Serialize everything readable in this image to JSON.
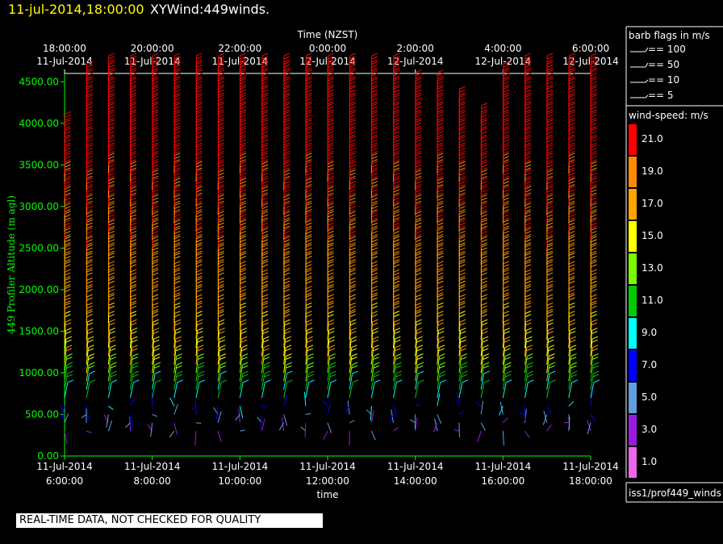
{
  "header": {
    "date_time": "11-jul-2014,18:00:00",
    "title": "XYWind:449winds."
  },
  "quality_note": "REAL-TIME DATA, NOT CHECKED FOR QUALITY",
  "barb_legend": {
    "title": "barb flags in m/s",
    "items": [
      "== 100",
      "== 50",
      "== 10",
      "== 5"
    ]
  },
  "speed_legend": {
    "title": "wind-speed: m/s",
    "levels": [
      {
        "label": "21.0",
        "color": "#ff0000"
      },
      {
        "label": "19.0",
        "color": "#ff8c00"
      },
      {
        "label": "17.0",
        "color": "#ffa500"
      },
      {
        "label": "15.0",
        "color": "#ffff00"
      },
      {
        "label": "13.0",
        "color": "#7cfc00"
      },
      {
        "label": "11.0",
        "color": "#00cc00"
      },
      {
        "label": "9.0",
        "color": "#00ffff"
      },
      {
        "label": "7.0",
        "color": "#0000ff"
      },
      {
        "label": "5.0",
        "color": "#5f9fdf"
      },
      {
        "label": "3.0",
        "color": "#9a1adf"
      },
      {
        "label": "1.0",
        "color": "#ee66ee"
      }
    ]
  },
  "source_label": "iss1/prof449_winds",
  "chart_data": {
    "type": "scatter",
    "mark": "wind-barb",
    "top_axis_title": "Time (NZST)",
    "top_ticks": [
      {
        "time": "18:00:00",
        "date": "11-Jul-2014"
      },
      {
        "time": "20:00:00",
        "date": "11-Jul-2014"
      },
      {
        "time": "22:00:00",
        "date": "11-Jul-2014"
      },
      {
        "time": "0:00:00",
        "date": "12-Jul-2014"
      },
      {
        "time": "2:00:00",
        "date": "12-Jul-2014"
      },
      {
        "time": "4:00:00",
        "date": "12-Jul-2014"
      },
      {
        "time": "6:00:00",
        "date": "12-Jul-2014"
      }
    ],
    "bottom_ticks": [
      {
        "date": "11-Jul-2014",
        "time": "6:00:00"
      },
      {
        "date": "11-Jul-2014",
        "time": "8:00:00"
      },
      {
        "date": "11-Jul-2014",
        "time": "10:00:00"
      },
      {
        "date": "11-Jul-2014",
        "time": "12:00:00"
      },
      {
        "date": "11-Jul-2014",
        "time": "14:00:00"
      },
      {
        "date": "11-Jul-2014",
        "time": "16:00:00"
      },
      {
        "date": "11-Jul-2014",
        "time": "18:00:00"
      }
    ],
    "xlabel": "time",
    "ylabel": "449 Profiler Altitude (m agl)",
    "x_hours_range": [
      6,
      18
    ],
    "yticks": [
      "0.00",
      "500.00",
      "1000.00",
      "1500.00",
      "2000.00",
      "2500.00",
      "3000.00",
      "3500.00",
      "4000.00",
      "4500.00"
    ],
    "ylim": [
      0,
      4600
    ],
    "profile_times_hours": [
      6.0,
      6.5,
      7.0,
      7.5,
      8.0,
      8.5,
      9.0,
      9.5,
      10.0,
      10.5,
      11.0,
      11.5,
      12.0,
      12.5,
      13.0,
      13.5,
      14.0,
      14.5,
      15.0,
      15.5,
      16.0,
      16.5,
      17.0,
      17.5,
      18.0
    ],
    "profile_top_m": [
      3900,
      4500,
      4600,
      4600,
      4600,
      4600,
      4600,
      4600,
      4600,
      4600,
      4600,
      4600,
      4600,
      4600,
      4600,
      4600,
      4450,
      4450,
      4250,
      4000,
      4500,
      4600,
      4600,
      4600,
      4600
    ],
    "speed_profile": [
      {
        "alt_m": 300,
        "speed": 3
      },
      {
        "alt_m": 500,
        "speed": 5
      },
      {
        "alt_m": 700,
        "speed": 9
      },
      {
        "alt_m": 900,
        "speed": 12
      },
      {
        "alt_m": 1100,
        "speed": 15
      },
      {
        "alt_m": 1400,
        "speed": 16
      },
      {
        "alt_m": 1700,
        "speed": 17
      },
      {
        "alt_m": 2000,
        "speed": 18
      },
      {
        "alt_m": 2500,
        "speed": 19
      },
      {
        "alt_m": 3000,
        "speed": 20
      },
      {
        "alt_m": 3500,
        "speed": 21
      },
      {
        "alt_m": 4600,
        "speed": 23
      }
    ],
    "grid": false
  }
}
